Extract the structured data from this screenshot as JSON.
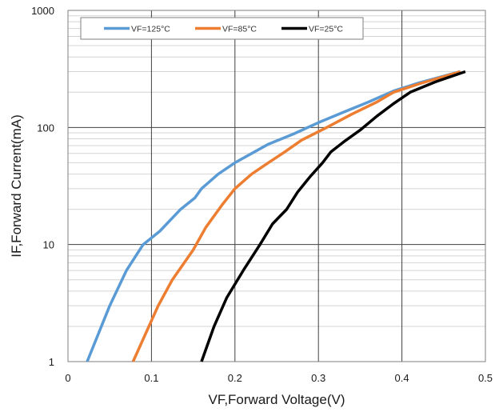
{
  "chart_data": {
    "type": "line",
    "title": "",
    "xlabel": "VF,Forward Voltage(V)",
    "ylabel": "IF,Forward Current(mA)",
    "xlim": [
      0,
      0.5
    ],
    "ylim": [
      1,
      1000
    ],
    "y_scale": "log",
    "x_ticks": [
      "0",
      "0.1",
      "0.2",
      "0.3",
      "0.4",
      "0.5"
    ],
    "y_ticks": [
      "1",
      "10",
      "100",
      "1000"
    ],
    "grid": true,
    "legend_position": "top",
    "series": [
      {
        "name": "VF=125°C",
        "color": "#5b9bd5",
        "points": [
          [
            0.023,
            1
          ],
          [
            0.05,
            3
          ],
          [
            0.07,
            6
          ],
          [
            0.09,
            10
          ],
          [
            0.11,
            13
          ],
          [
            0.135,
            20
          ],
          [
            0.152,
            25
          ],
          [
            0.16,
            30
          ],
          [
            0.18,
            40
          ],
          [
            0.2,
            50
          ],
          [
            0.22,
            60
          ],
          [
            0.24,
            72
          ],
          [
            0.27,
            88
          ],
          [
            0.3,
            110
          ],
          [
            0.33,
            135
          ],
          [
            0.36,
            165
          ],
          [
            0.39,
            205
          ],
          [
            0.42,
            240
          ],
          [
            0.47,
            300
          ]
        ]
      },
      {
        "name": "VF=85°C",
        "color": "#ed7d31",
        "points": [
          [
            0.078,
            1
          ],
          [
            0.108,
            3
          ],
          [
            0.125,
            5
          ],
          [
            0.15,
            9
          ],
          [
            0.165,
            14
          ],
          [
            0.185,
            22
          ],
          [
            0.2,
            30
          ],
          [
            0.22,
            40
          ],
          [
            0.24,
            50
          ],
          [
            0.26,
            62
          ],
          [
            0.28,
            78
          ],
          [
            0.31,
            100
          ],
          [
            0.34,
            130
          ],
          [
            0.37,
            165
          ],
          [
            0.39,
            200
          ],
          [
            0.42,
            235
          ],
          [
            0.47,
            300
          ]
        ]
      },
      {
        "name": "VF=25°C",
        "color": "#000000",
        "points": [
          [
            0.16,
            1
          ],
          [
            0.175,
            2
          ],
          [
            0.19,
            3.5
          ],
          [
            0.21,
            6
          ],
          [
            0.23,
            10
          ],
          [
            0.245,
            15
          ],
          [
            0.262,
            20
          ],
          [
            0.275,
            28
          ],
          [
            0.29,
            38
          ],
          [
            0.305,
            50
          ],
          [
            0.315,
            62
          ],
          [
            0.33,
            75
          ],
          [
            0.35,
            95
          ],
          [
            0.37,
            125
          ],
          [
            0.39,
            160
          ],
          [
            0.41,
            200
          ],
          [
            0.44,
            245
          ],
          [
            0.476,
            300
          ]
        ]
      }
    ]
  }
}
